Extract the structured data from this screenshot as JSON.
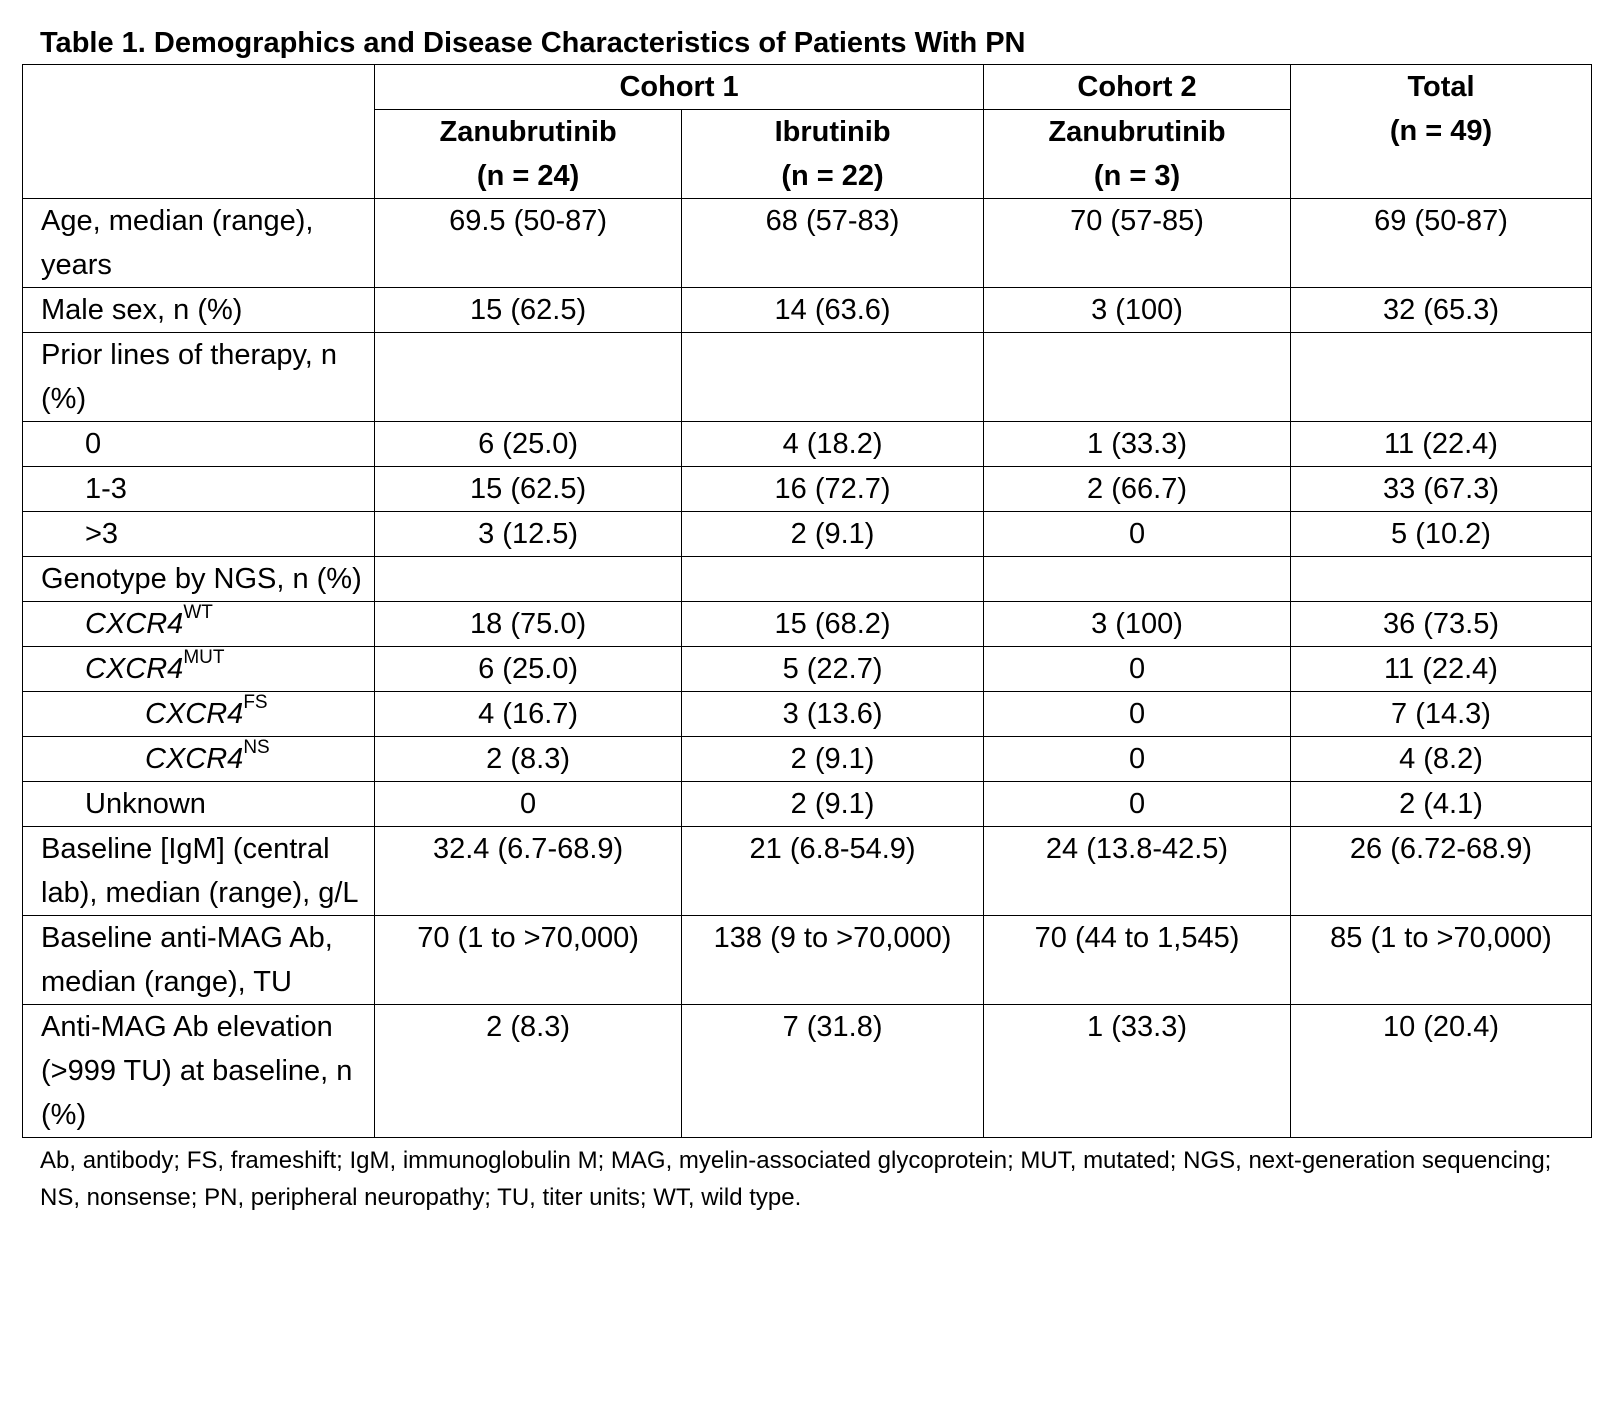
{
  "title": "Table 1. Demographics and Disease Characteristics of Patients With PN",
  "header": {
    "cohort1": "Cohort 1",
    "cohort2": "Cohort 2",
    "total_line1": "Total",
    "total_line2": "(n = 49)",
    "cols": [
      {
        "line1": "Zanubrutinib",
        "line2": "(n = 24)"
      },
      {
        "line1": "Ibrutinib",
        "line2": "(n = 22)"
      },
      {
        "line1": "Zanubrutinib",
        "line2": "(n = 3)"
      }
    ]
  },
  "rows": [
    {
      "label": "Age, median (range), years",
      "values": [
        "69.5 (50-87)",
        "68 (57-83)",
        "70 (57-85)",
        "69 (50-87)"
      ]
    },
    {
      "label": "Male sex, n (%)",
      "values": [
        "15 (62.5)",
        "14 (63.6)",
        "3 (100)",
        "32 (65.3)"
      ]
    },
    {
      "label": "Prior lines of therapy, n (%)",
      "values": [
        "",
        "",
        "",
        ""
      ]
    },
    {
      "label": "0",
      "values": [
        "6 (25.0)",
        "4 (18.2)",
        "1 (33.3)",
        "11 (22.4)"
      ]
    },
    {
      "label": "1-3",
      "values": [
        "15 (62.5)",
        "16 (72.7)",
        "2 (66.7)",
        "33 (67.3)"
      ]
    },
    {
      "label": ">3",
      "values": [
        "3 (12.5)",
        "2 (9.1)",
        "0",
        "5 (10.2)"
      ]
    },
    {
      "label": "Genotype by NGS, n (%)",
      "values": [
        "",
        "",
        "",
        ""
      ]
    },
    {
      "gene": "CXCR4",
      "sup": "WT",
      "values": [
        "18 (75.0)",
        "15 (68.2)",
        "3 (100)",
        "36 (73.5)"
      ]
    },
    {
      "gene": "CXCR4",
      "sup": "MUT",
      "values": [
        "6 (25.0)",
        "5 (22.7)",
        "0",
        "11 (22.4)"
      ]
    },
    {
      "gene": "CXCR4",
      "sup": "FS",
      "values": [
        "4 (16.7)",
        "3 (13.6)",
        "0",
        "7 (14.3)"
      ]
    },
    {
      "gene": "CXCR4",
      "sup": "NS",
      "values": [
        "2 (8.3)",
        "2 (9.1)",
        "0",
        "4 (8.2)"
      ]
    },
    {
      "label": "Unknown",
      "values": [
        "0",
        "2 (9.1)",
        "0",
        "2 (4.1)"
      ]
    },
    {
      "label": "Baseline [IgM] (central lab), median (range), g/L",
      "values": [
        "32.4 (6.7-68.9)",
        "21 (6.8-54.9)",
        "24 (13.8-42.5)",
        "26 (6.72-68.9)"
      ]
    },
    {
      "label": "Baseline anti-MAG Ab, median (range), TU",
      "values": [
        "70 (1 to >70,000)",
        "138 (9 to >70,000)",
        "70 (44 to 1,545)",
        "85 (1 to >70,000)"
      ]
    },
    {
      "label": "Anti-MAG Ab elevation (>999 TU) at baseline, n (%)",
      "values": [
        "2 (8.3)",
        "7 (31.8)",
        "1 (33.3)",
        "10 (20.4)"
      ]
    }
  ],
  "footnote": "Ab, antibody; FS, frameshift; IgM, immunoglobulin M; MAG, myelin-associated glycoprotein; MUT, mutated; NGS, next-generation sequencing; NS, nonsense; PN, peripheral neuropathy; TU, titer units; WT, wild type."
}
